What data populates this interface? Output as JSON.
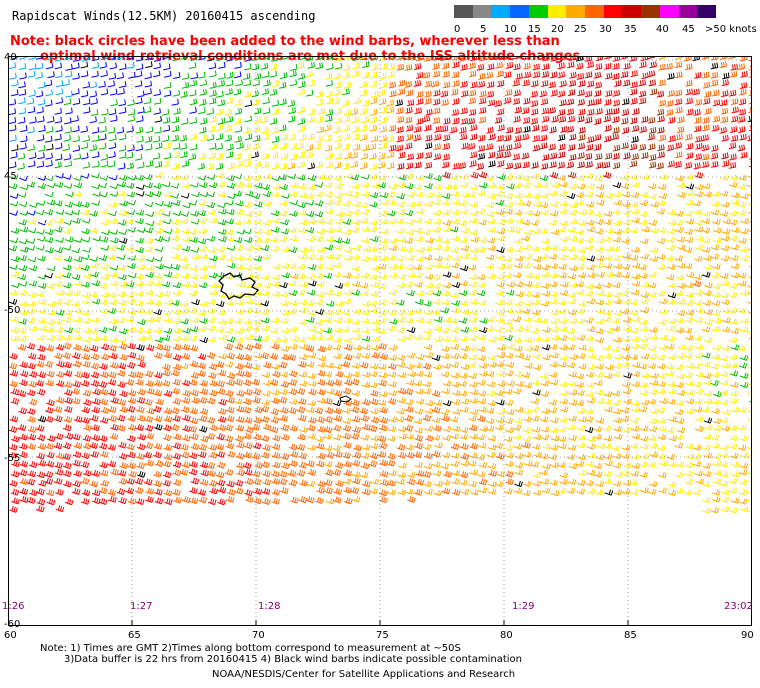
{
  "title": "Rapidscat Winds(12.5KM) 20160415 ascending",
  "note_line1": "Note: black circles have been added to the wind barbs, wherever less than",
  "note_line2": "optimal wind retrieval conditions are met due to the ISS altitude changes.",
  "colorbar": {
    "labels": [
      "0",
      "5",
      "10",
      "15",
      "20",
      "25",
      "30",
      "35",
      "40",
      "45",
      ">50 knots"
    ],
    "colors": [
      "#555555",
      "#888888",
      "#00aaff",
      "#0066ff",
      "#00cc00",
      "#ffee00",
      "#ffaa00",
      "#ff6600",
      "#ff0000",
      "#cc0000",
      "#993300",
      "#ff00ff",
      "#990099",
      "#330066"
    ]
  },
  "lat_labels": [
    "40",
    "45",
    "-50",
    "-55",
    "-60"
  ],
  "lon_labels": [
    "60",
    "65",
    "70",
    "75",
    "80",
    "85",
    "90"
  ],
  "time_labels": [
    "1:26",
    "1:27",
    "1:28",
    "1:29",
    "23:02"
  ],
  "footer_line1": "Note: 1) Times are GMT 2)Times along bottom correspond to measurement at ~50S",
  "footer_line2": "3)Data buffer is 22 hrs from 20160415 4) Black wind barbs indicate possible contamination",
  "footer_line3": "NOAA/NESDIS/Center for Satellite Applications and Research",
  "wind_legend": {
    "speed_colors": {
      "0-5": "#555555",
      "5-10": "#00aaff",
      "10-15": "#0000ff",
      "15-20": "#00bb00",
      "20-25": "#ffee00",
      "25-30": "#ffaa00",
      "30-35": "#ff6600",
      "35-40": "#ff0000",
      "40-45": "#cc0000",
      "45-50": "#993300"
    }
  }
}
